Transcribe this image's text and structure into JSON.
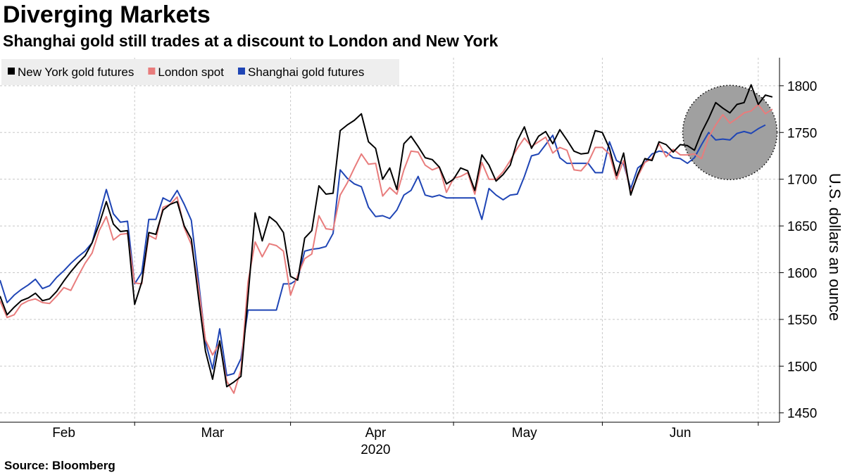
{
  "chart_data": {
    "type": "line",
    "title": "Diverging Markets",
    "subtitle": "Shanghai gold still trades at a discount to London and New York",
    "source": "Source: Bloomberg",
    "ylabel": "U.S. dollars an ounce",
    "xlabel": "2020",
    "ylim": [
      1440,
      1830
    ],
    "yticks": [
      1450,
      1500,
      1550,
      1600,
      1650,
      1700,
      1750,
      1800
    ],
    "x_range": [
      0,
      110
    ],
    "month_labels": [
      {
        "label": "Feb",
        "at": 9
      },
      {
        "label": "Mar",
        "at": 30
      },
      {
        "label": "Apr",
        "at": 53
      },
      {
        "label": "May",
        "at": 74
      },
      {
        "label": "Jun",
        "at": 96
      }
    ],
    "month_boundaries": [
      19,
      41,
      64,
      85,
      107
    ],
    "grid": true,
    "legend_position": "top-left",
    "highlight": {
      "shape": "circle",
      "center_x": 103,
      "center_y": 1750,
      "note": "shaded circle highlighting late-June divergence"
    },
    "series": [
      {
        "name": "New York gold futures",
        "color": "#000000",
        "x": [
          0,
          1,
          2,
          3,
          4,
          5,
          6,
          7,
          8,
          9,
          10,
          11,
          12,
          13,
          14,
          15,
          16,
          17,
          18,
          19,
          20,
          21,
          22,
          23,
          24,
          25,
          26,
          27,
          28,
          29,
          30,
          31,
          32,
          33,
          34,
          35,
          36,
          37,
          38,
          39,
          40,
          41,
          42,
          43,
          44,
          45,
          46,
          47,
          48,
          49,
          50,
          51,
          52,
          53,
          54,
          55,
          56,
          57,
          58,
          59,
          60,
          61,
          62,
          63,
          64,
          65,
          66,
          67,
          68,
          69,
          70,
          71,
          72,
          73,
          74,
          75,
          76,
          77,
          78,
          79,
          80,
          81,
          82,
          83,
          84,
          85,
          86,
          87,
          88,
          89,
          90,
          91,
          92,
          93,
          94,
          95,
          96,
          97,
          98,
          99,
          100,
          101,
          102,
          103,
          104,
          105,
          106,
          107,
          108,
          109
        ],
        "values": [
          1575,
          1555,
          1563,
          1570,
          1573,
          1578,
          1570,
          1572,
          1580,
          1591,
          1601,
          1610,
          1618,
          1632,
          1652,
          1676,
          1652,
          1644,
          1645,
          1566,
          1590,
          1643,
          1641,
          1667,
          1673,
          1676,
          1650,
          1636,
          1574,
          1516,
          1486,
          1527,
          1478,
          1483,
          1489,
          1574,
          1664,
          1634,
          1660,
          1654,
          1643,
          1596,
          1592,
          1637,
          1645,
          1693,
          1684,
          1685,
          1752,
          1758,
          1763,
          1770,
          1740,
          1733,
          1700,
          1712,
          1689,
          1738,
          1746,
          1735,
          1723,
          1721,
          1713,
          1695,
          1700,
          1712,
          1709,
          1688,
          1726,
          1715,
          1698,
          1705,
          1715,
          1741,
          1756,
          1733,
          1746,
          1751,
          1738,
          1753,
          1742,
          1730,
          1727,
          1728,
          1752,
          1750,
          1733,
          1704,
          1728,
          1683,
          1705,
          1722,
          1720,
          1740,
          1737,
          1729,
          1737,
          1736,
          1731,
          1750,
          1765,
          1782,
          1776,
          1771,
          1780,
          1782,
          1801,
          1780,
          1790,
          1788
        ]
      },
      {
        "name": "London spot",
        "color": "#e87c7c",
        "x": [
          0,
          1,
          2,
          3,
          4,
          5,
          6,
          7,
          8,
          9,
          10,
          11,
          12,
          13,
          14,
          15,
          16,
          17,
          18,
          19,
          20,
          21,
          22,
          23,
          24,
          25,
          26,
          27,
          28,
          29,
          30,
          31,
          32,
          33,
          34,
          35,
          36,
          37,
          38,
          39,
          40,
          41,
          42,
          43,
          44,
          45,
          46,
          47,
          48,
          49,
          50,
          51,
          52,
          53,
          54,
          55,
          56,
          57,
          58,
          59,
          60,
          61,
          62,
          63,
          64,
          65,
          66,
          67,
          68,
          69,
          70,
          71,
          72,
          73,
          74,
          75,
          76,
          77,
          78,
          79,
          80,
          81,
          82,
          83,
          84,
          85,
          86,
          87,
          88,
          89,
          90,
          91,
          92,
          93,
          94,
          95,
          96,
          97,
          98,
          99,
          100,
          101,
          102,
          103,
          104,
          105,
          106,
          107,
          108,
          109
        ],
        "values": [
          1570,
          1552,
          1555,
          1566,
          1570,
          1572,
          1568,
          1567,
          1575,
          1584,
          1581,
          1596,
          1610,
          1621,
          1645,
          1660,
          1635,
          1641,
          1642,
          1589,
          1588,
          1640,
          1636,
          1670,
          1673,
          1681,
          1648,
          1630,
          1585,
          1528,
          1512,
          1525,
          1484,
          1471,
          1496,
          1590,
          1633,
          1617,
          1631,
          1629,
          1623,
          1576,
          1597,
          1615,
          1620,
          1661,
          1647,
          1646,
          1683,
          1696,
          1712,
          1727,
          1716,
          1717,
          1682,
          1691,
          1684,
          1710,
          1730,
          1729,
          1715,
          1710,
          1713,
          1686,
          1701,
          1703,
          1707,
          1684,
          1718,
          1700,
          1700,
          1708,
          1720,
          1733,
          1744,
          1735,
          1740,
          1745,
          1728,
          1734,
          1731,
          1710,
          1709,
          1718,
          1734,
          1734,
          1727,
          1700,
          1720,
          1686,
          1703,
          1718,
          1722,
          1738,
          1724,
          1732,
          1726,
          1726,
          1727,
          1722,
          1745,
          1758,
          1769,
          1760,
          1765,
          1771,
          1773,
          1780,
          1770,
          1775
        ]
      },
      {
        "name": "Shanghai gold futures",
        "color": "#1f45b5",
        "x": [
          0,
          1,
          2,
          3,
          4,
          5,
          6,
          7,
          8,
          9,
          10,
          11,
          12,
          13,
          14,
          15,
          16,
          17,
          18,
          19,
          20,
          21,
          22,
          23,
          24,
          25,
          26,
          27,
          28,
          29,
          30,
          31,
          32,
          33,
          34,
          35,
          36,
          37,
          38,
          39,
          40,
          41,
          42,
          43,
          44,
          45,
          46,
          47,
          48,
          49,
          50,
          51,
          52,
          53,
          54,
          55,
          56,
          57,
          58,
          59,
          60,
          61,
          62,
          63,
          64,
          65,
          66,
          67,
          68,
          69,
          70,
          71,
          72,
          73,
          74,
          75,
          76,
          77,
          78,
          79,
          80,
          81,
          82,
          83,
          84,
          85,
          86,
          87,
          88,
          89,
          90,
          91,
          92,
          93,
          94,
          95,
          96,
          97,
          98,
          99,
          100,
          101,
          102,
          103,
          104,
          105,
          106,
          107,
          108
        ],
        "values": [
          1592,
          1568,
          1576,
          1582,
          1587,
          1593,
          1583,
          1586,
          1595,
          1602,
          1610,
          1617,
          1623,
          1632,
          1661,
          1689,
          1663,
          1654,
          1655,
          1588,
          1600,
          1657,
          1657,
          1680,
          1676,
          1688,
          1673,
          1656,
          1592,
          1526,
          1497,
          1540,
          1490,
          1492,
          1508,
          1560,
          1560,
          1560,
          1560,
          1560,
          1588,
          1588,
          1593,
          1623,
          1625,
          1626,
          1628,
          1642,
          1710,
          1701,
          1695,
          1692,
          1670,
          1660,
          1661,
          1658,
          1667,
          1683,
          1688,
          1703,
          1683,
          1681,
          1683,
          1680,
          1680,
          1680,
          1680,
          1680,
          1657,
          1690,
          1683,
          1678,
          1683,
          1684,
          1703,
          1725,
          1727,
          1737,
          1747,
          1723,
          1717,
          1717,
          1717,
          1717,
          1707,
          1707,
          1740,
          1720,
          1716,
          1690,
          1712,
          1718,
          1727,
          1730,
          1729,
          1723,
          1722,
          1717,
          1723,
          1737,
          1750,
          1742,
          1743,
          1742,
          1749,
          1751,
          1749,
          1754,
          1758
        ]
      }
    ]
  }
}
